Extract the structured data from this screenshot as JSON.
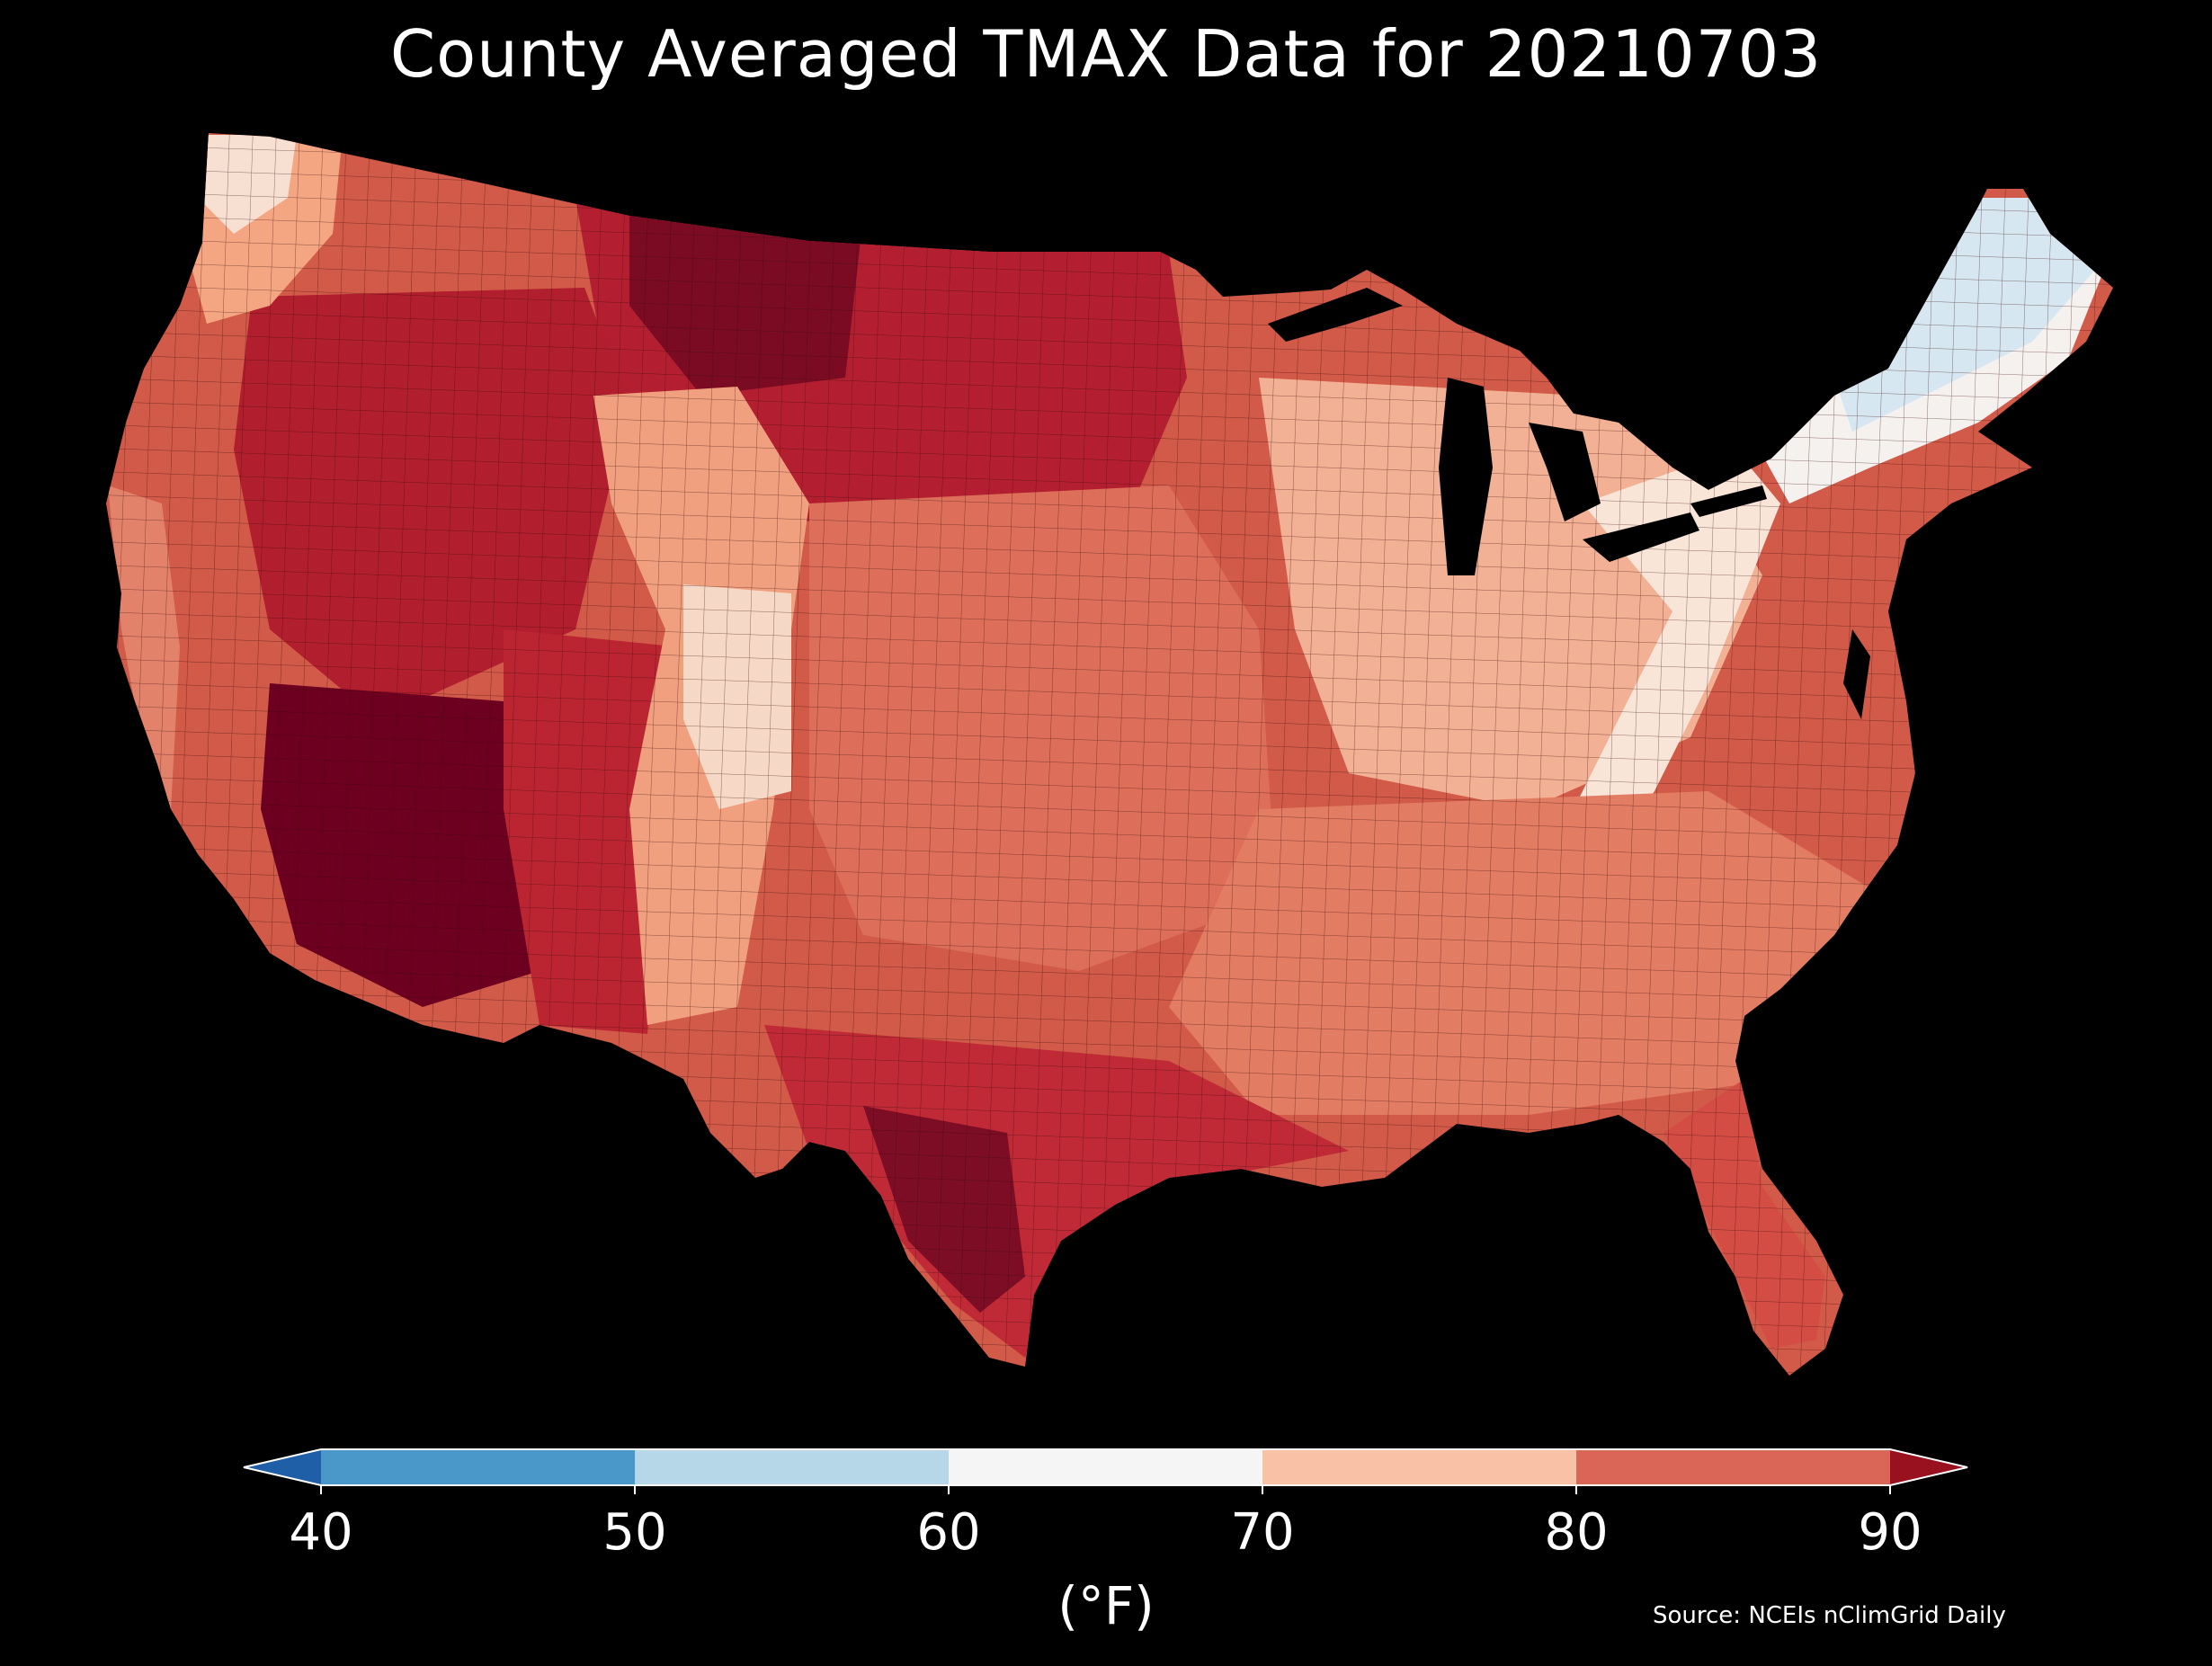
{
  "title": "County Averaged TMAX Data for 20210703",
  "colorbar": {
    "ticks": [
      "40",
      "50",
      "60",
      "70",
      "80",
      "90"
    ],
    "unit": "(°F)",
    "bins": [
      {
        "range": "<40",
        "color": "#1f5fa8"
      },
      {
        "range": "40-50",
        "color": "#4a98c9"
      },
      {
        "range": "50-60",
        "color": "#b6d7e8"
      },
      {
        "range": "60-70",
        "color": "#f5f5f5"
      },
      {
        "range": "70-80",
        "color": "#f9c2a6"
      },
      {
        "range": "80-90",
        "color": "#d96656"
      },
      {
        "range": ">90",
        "color": "#99101f"
      }
    ]
  },
  "source": "Source: NCEIs nClimGrid Daily",
  "colors": {
    "background": "#000000",
    "deep_red": "#6d0020",
    "red": "#b81c30",
    "mid_red": "#d6604d",
    "light_salmon": "#f4a582",
    "white": "#f7f7f7",
    "light_blue": "#d1e5f0"
  }
}
